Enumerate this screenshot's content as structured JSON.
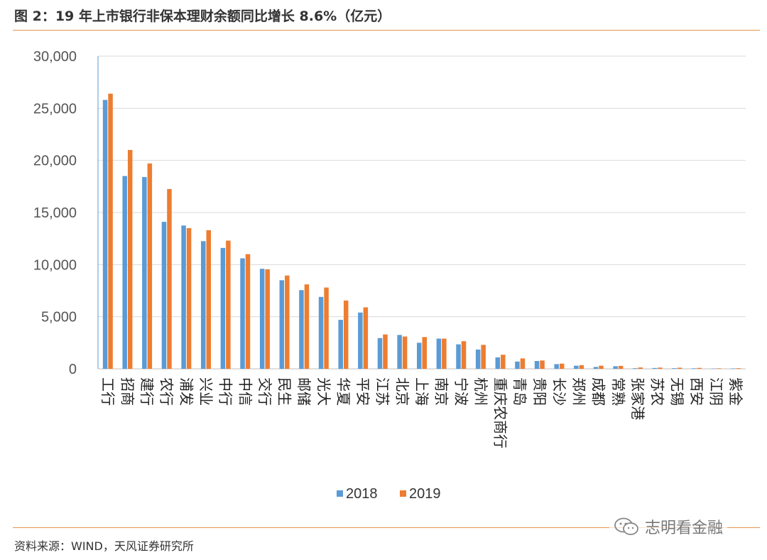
{
  "header": {
    "title": "图 2：19 年上市银行非保本理财余额同比增长 8.6%（亿元）"
  },
  "footer": {
    "source": "资料来源：WIND，天风证券研究所",
    "watermark": "志明看金融",
    "watermark_icon": "wechat-icon"
  },
  "colors": {
    "series_2018": "#5b9bd5",
    "series_2019": "#ed7d31",
    "rule": "#e8954c",
    "grid": "#d9d9d9"
  },
  "chart_data": {
    "type": "bar",
    "ylim": [
      0,
      30000
    ],
    "yticks": [
      "0",
      "5,000",
      "10,000",
      "15,000",
      "20,000",
      "25,000",
      "30,000"
    ],
    "grid": true,
    "legend_position": "bottom",
    "categories": [
      "工行",
      "招商",
      "建行",
      "农行",
      "浦发",
      "兴业",
      "中行",
      "中信",
      "交行",
      "民生",
      "邮储",
      "光大",
      "华夏",
      "平安",
      "江苏",
      "北京",
      "上海",
      "南京",
      "宁波",
      "杭州",
      "重庆农商行",
      "青岛",
      "贵阳",
      "长沙",
      "郑州",
      "成都",
      "常熟",
      "张家港",
      "苏农",
      "无锡",
      "西安",
      "江阴",
      "紫金"
    ],
    "series": [
      {
        "name": "2018",
        "values": [
          25800,
          18500,
          18400,
          14100,
          13750,
          12250,
          11600,
          10600,
          9600,
          8500,
          7550,
          6900,
          4700,
          5400,
          2950,
          3250,
          2500,
          2900,
          2350,
          1850,
          1100,
          700,
          750,
          450,
          300,
          180,
          250,
          60,
          80,
          60,
          50,
          30,
          40
        ]
      },
      {
        "name": "2019",
        "values": [
          26400,
          21000,
          19700,
          17250,
          13500,
          13300,
          12300,
          11000,
          9550,
          8950,
          8100,
          7800,
          6550,
          5900,
          3300,
          3100,
          3050,
          2900,
          2650,
          2300,
          1350,
          1000,
          800,
          500,
          350,
          300,
          280,
          130,
          120,
          110,
          90,
          50,
          60
        ]
      }
    ]
  }
}
